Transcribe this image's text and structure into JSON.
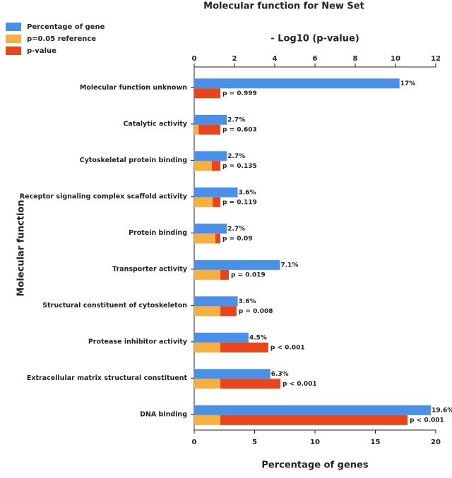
{
  "chart_data": {
    "type": "hbar",
    "title": "Molecular function for New Set",
    "x_label": "Percentage of genes",
    "x2_label": "- Log10 (p-value)",
    "y_label": "Molecular function",
    "categories": [
      "Molecular function unknown",
      "Catalytic activity",
      "Cytoskeletal protein binding",
      "Receptor signaling complex scaffold activity",
      "Protein binding",
      "Transporter activity",
      "Structural constituent of cytoskeleton",
      "Protease inhibitor activity",
      "Extracellular matrix structural constituent",
      "DNA binding"
    ],
    "xlim": [
      0,
      20
    ],
    "xticks": [
      0,
      5,
      10,
      15,
      20
    ],
    "x2lim": [
      0,
      12
    ],
    "x2ticks": [
      0,
      2,
      4,
      6,
      8,
      10,
      12
    ],
    "series": [
      {
        "name": "Percentage of gene",
        "color": "#4a90e8",
        "axis": "x",
        "values": [
          17,
          2.7,
          2.7,
          3.6,
          2.7,
          7.1,
          3.6,
          4.5,
          6.3,
          19.6
        ],
        "value_labels": [
          "17%",
          "2.7%",
          "2.7%",
          "3.6%",
          "2.7%",
          "7.1%",
          "3.6%",
          "4.5%",
          "6.3%",
          "19.6%"
        ]
      },
      {
        "name": "p=0.05 reference",
        "color": "#f5b041",
        "axis": "x2",
        "values": [
          0,
          0.22,
          0.87,
          0.92,
          1.05,
          1.3,
          1.3,
          1.3,
          1.3,
          1.3
        ]
      },
      {
        "name": "p-value",
        "color": "#e8461a",
        "axis": "x2",
        "values": [
          1.3,
          1.08,
          0.43,
          0.38,
          0.25,
          0.42,
          0.8,
          2.38,
          2.98,
          9.3
        ]
      }
    ],
    "p_labels": [
      "p = 0.999",
      "p = 0.603",
      "p = 0.135",
      "p = 0.119",
      "p = 0.09",
      "p = 0.019",
      "p = 0.008",
      "p < 0.001",
      "p < 0.001",
      "p < 0.001"
    ]
  }
}
